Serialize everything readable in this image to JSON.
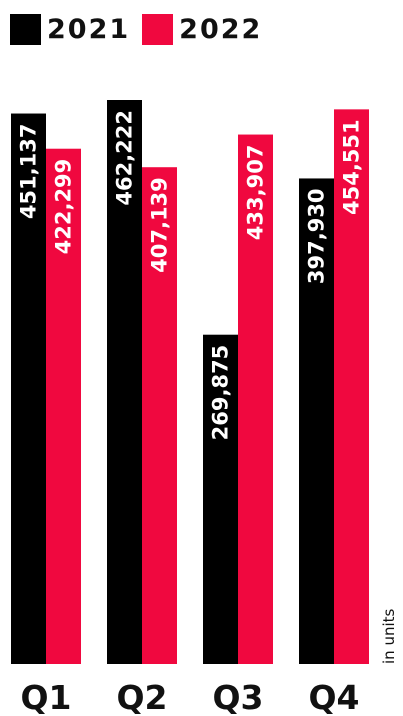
{
  "colors": {
    "series_2021": "#000000",
    "series_2022": "#f0083f",
    "label_text": "#ffffff",
    "axis_text": "#111111"
  },
  "chart_data": {
    "type": "bar",
    "categories": [
      "Q1",
      "Q2",
      "Q3",
      "Q4"
    ],
    "series": [
      {
        "name": "2021",
        "values": [
          451137,
          462222,
          269875,
          397930
        ],
        "labels": [
          "451,137",
          "462,222",
          "269,875",
          "397,930"
        ]
      },
      {
        "name": "2022",
        "values": [
          422299,
          407139,
          433907,
          454551
        ],
        "labels": [
          "422,299",
          "407,139",
          "433,907",
          "454,551"
        ]
      }
    ],
    "units_label": "in units",
    "legend_position": "top-left",
    "grid": false,
    "ylim": [
      0,
      462222
    ],
    "data_labels": "rotated-inside-bar-top"
  }
}
